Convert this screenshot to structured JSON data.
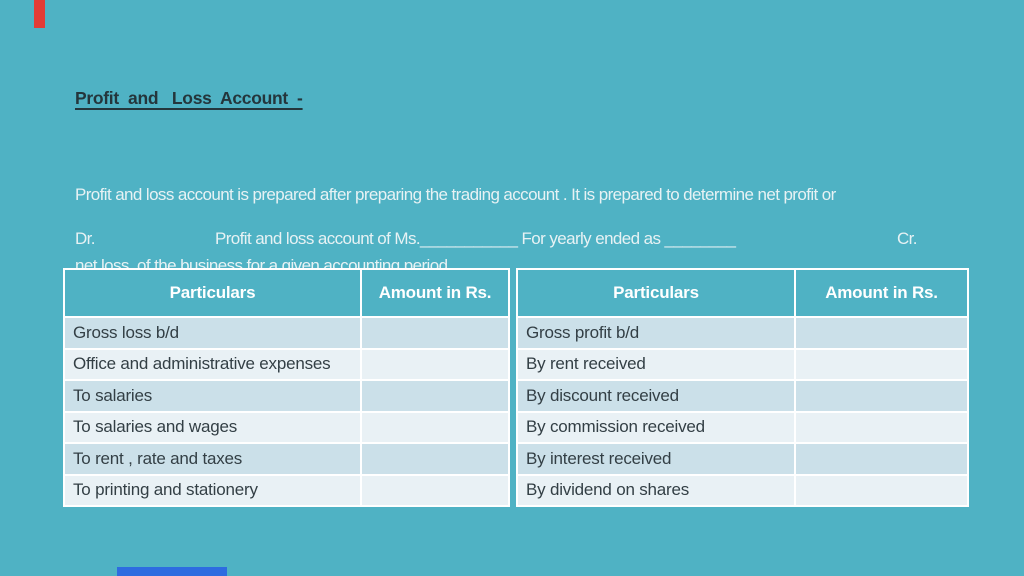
{
  "colors": {
    "background": "#4fb2c4",
    "red_accent": "#e23c36",
    "progress_blue": "#2d6ce0",
    "row_alt_dark": "#cbe0e9",
    "row_alt_light": "#e9f1f5",
    "header_text": "#ffffff",
    "body_text": "#333f45"
  },
  "title": "Profit  and   Loss  Account  -",
  "description_lines": {
    "0": "Profit and loss account is prepared after preparing the trading account . It is prepared to determine net profit or",
    "1": "net loss  of the business for a given accounting period ."
  },
  "account_line": {
    "dr": "Dr.",
    "center": "Profit and loss account of Ms.___________ For yearly ended as ________",
    "cr": "Cr."
  },
  "table": {
    "headers": {
      "debit_particulars": "Particulars",
      "debit_amount": "Amount in Rs.",
      "credit_particulars": "Particulars",
      "credit_amount": "Amount  in Rs."
    },
    "rows": [
      {
        "debit_item": "Gross loss b/d",
        "debit_amount": "",
        "credit_item": "Gross profit b/d",
        "credit_amount": ""
      },
      {
        "debit_item": "Office and administrative expenses",
        "debit_amount": "",
        "credit_item": "By rent received",
        "credit_amount": ""
      },
      {
        "debit_item": "To salaries",
        "debit_amount": "",
        "credit_item": "By discount received",
        "credit_amount": ""
      },
      {
        "debit_item": "To salaries and wages",
        "debit_amount": "",
        "credit_item": "By commission received",
        "credit_amount": ""
      },
      {
        "debit_item": "To rent , rate and taxes",
        "debit_amount": "",
        "credit_item": "By interest received",
        "credit_amount": ""
      },
      {
        "debit_item": "To printing and stationery",
        "debit_amount": "",
        "credit_item": "By dividend on shares",
        "credit_amount": ""
      }
    ]
  }
}
